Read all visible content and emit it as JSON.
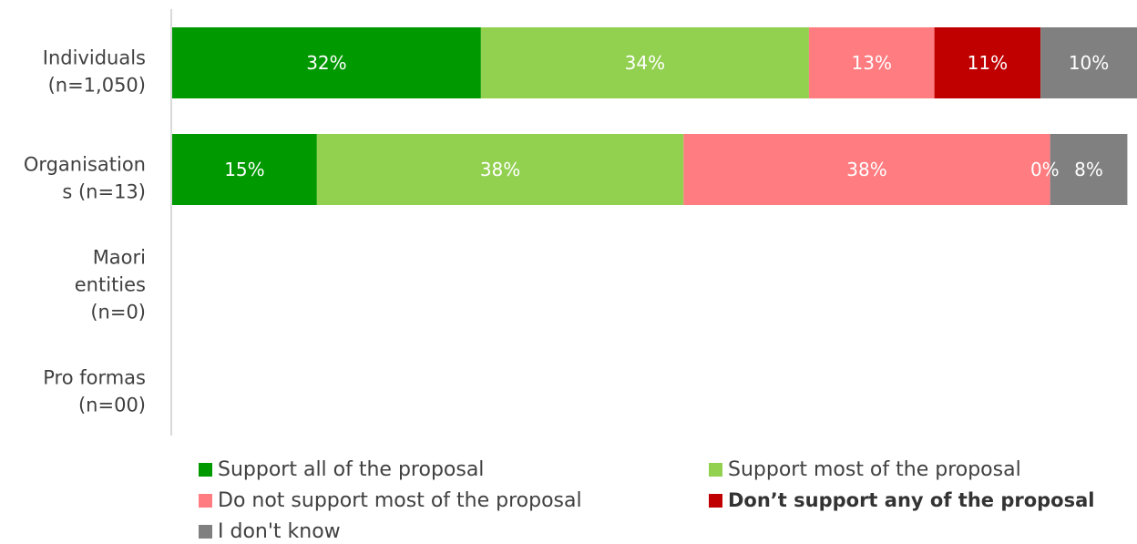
{
  "chart_data": {
    "type": "bar",
    "orientation": "horizontal",
    "stacked": true,
    "categories": [
      {
        "lines": [
          "Individuals",
          "(n=1,050)"
        ]
      },
      {
        "lines": [
          "Organisation",
          "s (n=13)"
        ]
      },
      {
        "lines": [
          "Maori",
          "entities",
          "(n=0)"
        ]
      },
      {
        "lines": [
          "Pro formas",
          "(n=00)"
        ]
      }
    ],
    "series": [
      {
        "name": "Support all of the proposal",
        "color": "#009900",
        "values": [
          32,
          15,
          null,
          null
        ],
        "labels": [
          "32%",
          "15%",
          "",
          ""
        ]
      },
      {
        "name": "Support most of the proposal",
        "color": "#92d050",
        "values": [
          34,
          38,
          null,
          null
        ],
        "labels": [
          "34%",
          "38%",
          "",
          ""
        ]
      },
      {
        "name": "Do not support most of the proposal",
        "color": "#ff7c80",
        "values": [
          13,
          38,
          null,
          null
        ],
        "labels": [
          "13%",
          "38%",
          "",
          ""
        ]
      },
      {
        "name": "Don’t support any of the proposal",
        "color": "#c00000",
        "values": [
          11,
          0,
          null,
          null
        ],
        "labels": [
          "11%",
          "0%",
          "",
          ""
        ]
      },
      {
        "name": "I don't know",
        "color": "#808080",
        "values": [
          10,
          8,
          null,
          null
        ],
        "labels": [
          "10%",
          "8%",
          "",
          ""
        ]
      }
    ],
    "xlim": [
      0,
      100
    ],
    "grid": false,
    "legend_position": "bottom"
  }
}
